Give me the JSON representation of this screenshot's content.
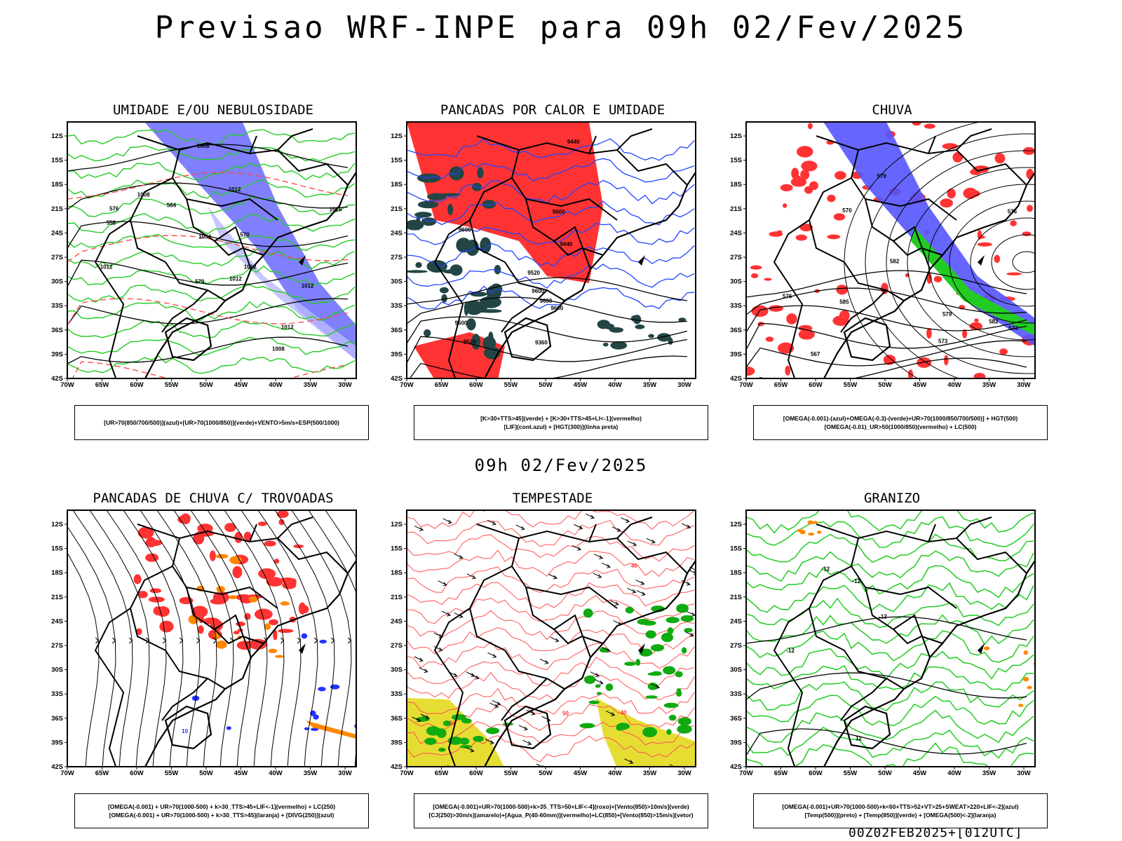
{
  "header": {
    "title": "Previsao WRF-INPE  para 09h 02/Fev/2025"
  },
  "mid_label": "09h 02/Fev/2025",
  "footer": "00Z02FEB2025+[012UTC]",
  "axes": {
    "lat": [
      "12S",
      "15S",
      "18S",
      "21S",
      "24S",
      "27S",
      "30S",
      "33S",
      "36S",
      "39S",
      "42S"
    ],
    "lon": [
      "70W",
      "65W",
      "60W",
      "55W",
      "50W",
      "45W",
      "40W",
      "35W",
      "30W"
    ]
  },
  "panels": [
    {
      "title": "UMIDADE E/OU NEBULOSIDADE",
      "legend": [
        "[UR>70(850/700/500)](azul)+[UR>70(1000/850)](verde)+VENTO>5m/s+ESP(500/1000)"
      ],
      "contours": [
        "1012",
        "1012",
        "1008",
        "1012",
        "1016",
        "1008",
        "1012",
        "1008",
        "1004",
        "1012",
        "1012",
        "576",
        "570",
        "564",
        "558",
        "570"
      ]
    },
    {
      "title": "PANCADAS POR CALOR E UMIDADE",
      "legend": [
        "[K>30+TTS>45](verde) + [K>30+TTS>45+LI<-1](vermelho)",
        "[LIF](cont.azul) + [HGT(300)](linha preta)"
      ],
      "contours": [
        "9600",
        "9600",
        "9600",
        "9600",
        "9600",
        "9520",
        "9520",
        "9440",
        "9440",
        "9360",
        "9680"
      ]
    },
    {
      "title": "CHUVA",
      "legend": [
        "[OMEGA(-0.001)-(azul)+OMEGA(-0.3)-(verde)+UR>70(1000/850/700/500)] + HGT(500)",
        "[OMEGA(-0.01)_UR>50(1000/850)(vermelho) + LC(500)"
      ],
      "contours": [
        "579",
        "582",
        "585",
        "582",
        "579",
        "576",
        "573",
        "567",
        "573",
        "570",
        "576"
      ]
    },
    {
      "title": "PANCADAS DE CHUVA C/ TROVOADAS",
      "legend": [
        "[OMEGA(-0.001) + UR>70(1000-500) + k>30_TTS>45+LIF<-1](vermelho) + LC(250)",
        "[OMEGA(-0.001) + UR>70(1000-500) + k>30_TTS>45](laranja) + [DIVG(250)](azul)"
      ],
      "contours": [
        "10"
      ]
    },
    {
      "title": "TEMPESTADE",
      "legend": [
        "[OMEGA(-0.001)+UR>70(1000-500)+k>35_TTS>50+LIF<-4](roxo)+[Vento(850)>10m/s](verde)",
        "[CJ(250)>30m/s](amarelo)+[Agua_P(40-60mm)](vermelho)+LC(850)+[Vento(850)>15m/s](vetor)"
      ],
      "contours": [
        "40",
        "50",
        "40",
        "50"
      ]
    },
    {
      "title": "GRANIZO",
      "legend": [
        "[OMEGA(-0.001)+UR>70(1000-500)+k<60+TTS>52+VT>25+SWEAT>220+LIF<-2](azul)",
        "[Temp(500)](preto) + [Temp(850)](verde) + [OMEGA(500)<-2](laranja)"
      ],
      "contours": [
        "-12",
        "-12",
        "12",
        "-12",
        "-12"
      ]
    }
  ],
  "colors": {
    "blue": "#5555ff",
    "green": "#22cc22",
    "red": "#ff3333",
    "orange": "#ff8800",
    "yellow": "#e6dd33",
    "darkgreen": "#234545",
    "purple": "#aa66ff"
  }
}
